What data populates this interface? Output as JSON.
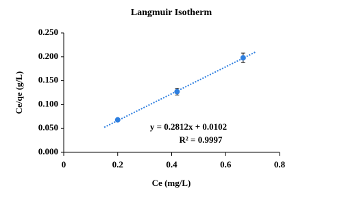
{
  "chart_data": {
    "type": "scatter",
    "title": "Langmuir Isotherm",
    "x_label": "Ce (mg/L)",
    "y_label": "Ce/qe (g/L)",
    "series": [
      {
        "color": "#2e7fe0",
        "x": [
          0.2,
          0.42,
          0.665
        ],
        "values": [
          0.068,
          0.127,
          0.198
        ],
        "errors": [
          0.002,
          0.007,
          0.01
        ]
      }
    ],
    "trendline": {
      "color": "#2e7fe0",
      "slope": 0.2812,
      "intercept": 0.0102,
      "x": [
        0.15,
        0.71
      ],
      "equation": "y = 0.2812x + 0.0102",
      "r_squared": "R² = 0.9997"
    },
    "xlim": [
      0,
      0.8
    ],
    "xticks": [
      0,
      0.2,
      0.4,
      0.6,
      0.8
    ],
    "ylim": [
      0,
      0.25
    ],
    "yticks": [
      {
        "value": 0,
        "label": "0.000"
      },
      {
        "value": 0.05,
        "label": "0.050"
      },
      {
        "value": 0.1,
        "label": "0.100"
      },
      {
        "value": 0.15,
        "label": "0.150"
      },
      {
        "value": 0.2,
        "label": "0.200"
      },
      {
        "value": 0.25,
        "label": "0.250"
      }
    ],
    "grid": false
  }
}
